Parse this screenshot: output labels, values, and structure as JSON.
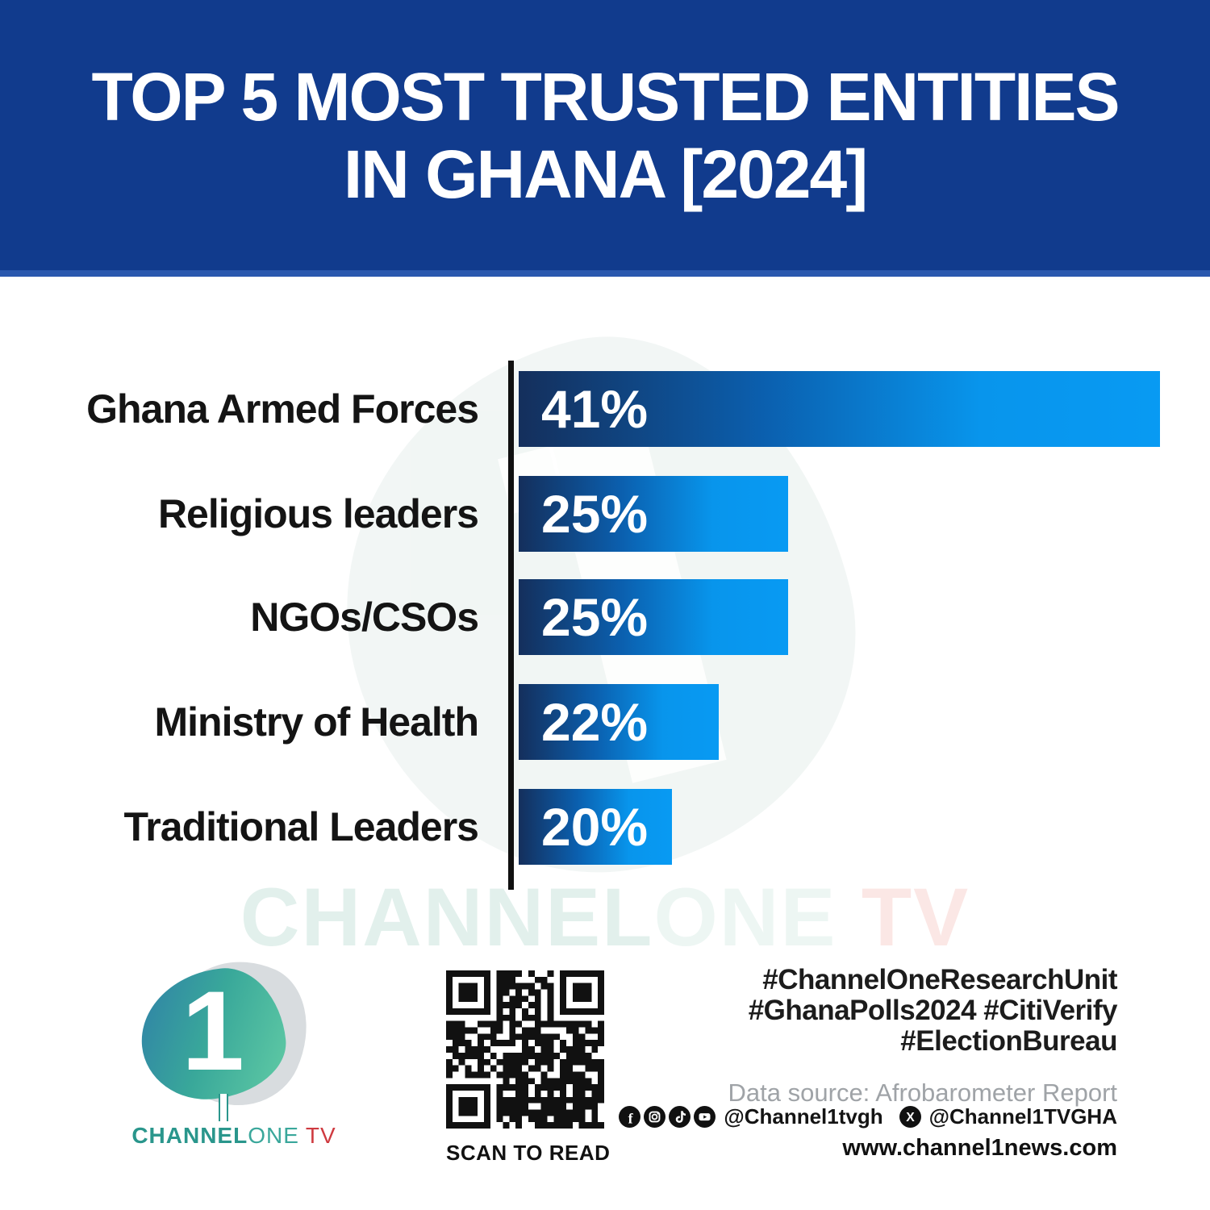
{
  "header": {
    "title_line1": "TOP 5 MOST TRUSTED ENTITIES",
    "title_line2": "IN GHANA [2024]"
  },
  "chart_data": {
    "type": "bar",
    "orientation": "horizontal",
    "title": "TOP 5 MOST TRUSTED ENTITIES IN GHANA [2024]",
    "categories": [
      "Ghana Armed Forces",
      "Religious leaders",
      "NGOs/CSOs",
      "Ministry of Health",
      "Traditional Leaders"
    ],
    "values": [
      41,
      25,
      25,
      22,
      20
    ],
    "value_suffix": "%",
    "grid": false,
    "visual_axis_range": [
      13.4,
      41
    ],
    "bar_color_dark": "#142f5c",
    "bar_color_bright": "#089af3",
    "axis_color": "#101010"
  },
  "watermark": {
    "part1": "CHANNEL",
    "part2": "ONE",
    "part3": " TV"
  },
  "footer": {
    "logo": {
      "numeral": "1",
      "brand_bold": "CHANNEL",
      "brand_light": "ONE",
      "brand_tv": "TV"
    },
    "qr_label": "SCAN TO READ",
    "hashtags": [
      "#ChannelOneResearchUnit",
      "#GhanaPolls2024 #CitiVerify",
      "#ElectionBureau"
    ],
    "data_source": "Data source: Afrobarometer Report",
    "social": {
      "icons": [
        "facebook-icon",
        "instagram-icon",
        "tiktok-icon",
        "youtube-icon",
        "x-icon"
      ],
      "handle_main": "@Channel1tvgh",
      "handle_x": "@Channel1TVGHA"
    },
    "website": "www.channel1news.com"
  },
  "colors": {
    "banner_blue": "#113b8d",
    "banner_edge": "#2a58ae",
    "teal": "#2a968c",
    "red": "#cf3a40",
    "label_black": "#141414",
    "source_gray": "#9fa3a7"
  }
}
